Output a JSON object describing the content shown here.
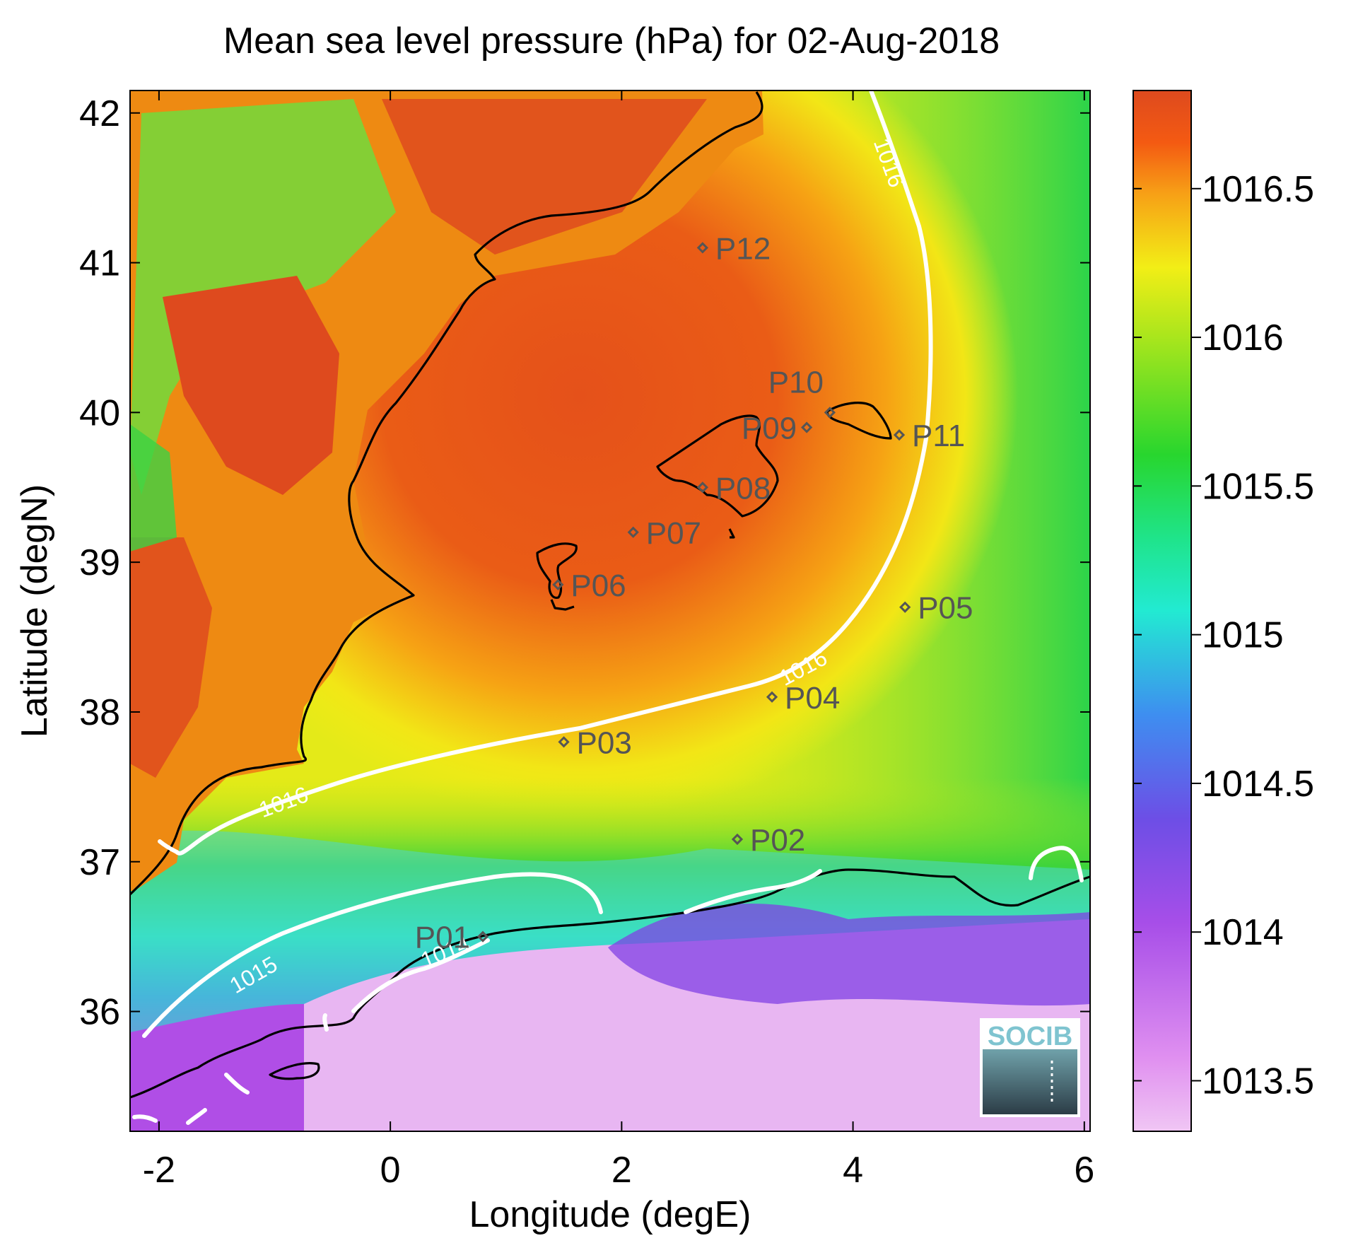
{
  "title": "Mean sea level pressure (hPa) for 02-Aug-2018",
  "xlabel": "Longitude (degE)",
  "ylabel": "Latitude (degN)",
  "colorbar": {
    "ticks": [
      "1016.5",
      "1016",
      "1015.5",
      "1015",
      "1014.5",
      "1014",
      "1013.5"
    ],
    "tick_values": [
      1016.5,
      1016,
      1015.5,
      1015,
      1014.5,
      1014,
      1013.5
    ],
    "range": [
      1013.33,
      1016.83
    ]
  },
  "colors": {
    "high": "#de4a1e",
    "orange": "#f47a16",
    "yellow": "#f2ee16",
    "green": "#28d62e",
    "cyan": "#22ead2",
    "blue": "#3e8ef0",
    "purple": "#8a46e6",
    "low": "#eab6f2",
    "contour": "#ffffff",
    "coast": "#000000",
    "station": "#555555"
  },
  "contour_labels": [
    {
      "text": "1016",
      "lon": 4.25,
      "lat": 41.65
    },
    {
      "text": "1016",
      "lon": 3.6,
      "lat": 38.25
    },
    {
      "text": "1016",
      "lon": -0.9,
      "lat": 37.35
    },
    {
      "text": "1015",
      "lon": -1.15,
      "lat": 36.2
    },
    {
      "text": "1014",
      "lon": 0.5,
      "lat": 36.35
    }
  ],
  "chart_data": {
    "type": "heatmap",
    "title": "Mean sea level pressure (hPa) for 02-Aug-2018",
    "xlabel": "Longitude (degE)",
    "ylabel": "Latitude (degN)",
    "x_ticks": [
      "-2",
      "0",
      "2",
      "4",
      "6"
    ],
    "x_tick_values": [
      -2,
      0,
      2,
      4,
      6
    ],
    "y_ticks": [
      "42",
      "41",
      "40",
      "39",
      "38",
      "37",
      "36"
    ],
    "y_tick_values": [
      42,
      41,
      40,
      39,
      38,
      37,
      36
    ],
    "xlim": [
      -2.25,
      6.05
    ],
    "ylim": [
      35.2,
      42.15
    ],
    "contour_levels": [
      1014,
      1015,
      1016
    ],
    "stations": [
      {
        "name": "P01",
        "lon": 0.8,
        "lat": 36.5
      },
      {
        "name": "P02",
        "lon": 3.0,
        "lat": 37.15
      },
      {
        "name": "P03",
        "lon": 1.5,
        "lat": 37.8
      },
      {
        "name": "P04",
        "lon": 3.3,
        "lat": 38.1
      },
      {
        "name": "P05",
        "lon": 4.45,
        "lat": 38.7
      },
      {
        "name": "P06",
        "lon": 1.45,
        "lat": 38.85
      },
      {
        "name": "P07",
        "lon": 2.1,
        "lat": 39.2
      },
      {
        "name": "P08",
        "lon": 2.7,
        "lat": 39.5
      },
      {
        "name": "P09",
        "lon": 3.6,
        "lat": 39.9
      },
      {
        "name": "P10",
        "lon": 3.8,
        "lat": 40.0
      },
      {
        "name": "P11",
        "lon": 4.4,
        "lat": 39.85
      },
      {
        "name": "P12",
        "lon": 2.7,
        "lat": 41.1
      }
    ]
  },
  "logo": {
    "text": "SOCIB"
  }
}
